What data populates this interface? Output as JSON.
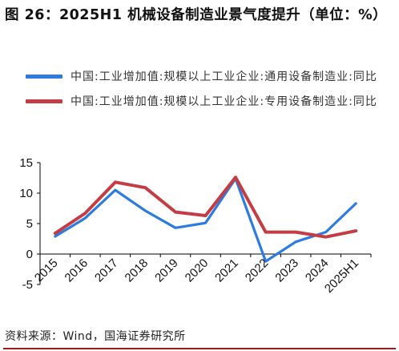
{
  "title": "图 26：2025H1 机械设备制造业景气度提升（单位：%）",
  "source": "资料来源：Wind，国海证券研究所",
  "colors": {
    "series_1": "#2c7be0",
    "series_2": "#c43c44",
    "axis": "#000000",
    "rule": "#9b1c1c"
  },
  "chart_data": {
    "type": "line",
    "x": [
      "2015",
      "2016",
      "2017",
      "2018",
      "2019",
      "2020",
      "2021",
      "2022",
      "2023",
      "2024",
      "2025H1"
    ],
    "ylim": [
      -5,
      15
    ],
    "yticks": [
      15,
      10,
      5,
      0,
      -5
    ],
    "grid": false,
    "legend_position": "top",
    "series": [
      {
        "name": "中国:工业增加值:规模以上工业企业:通用设备制造业:同比",
        "color": "#2c7be0",
        "values": [
          2.9,
          5.9,
          10.5,
          7.1,
          4.3,
          5.1,
          12.4,
          -1.2,
          2.0,
          3.6,
          8.3
        ]
      },
      {
        "name": "中国:工业增加值:规模以上工业企业:专用设备制造业:同比",
        "color": "#c43c44",
        "values": [
          3.4,
          6.7,
          11.8,
          10.9,
          6.9,
          6.3,
          12.6,
          3.6,
          3.6,
          2.8,
          3.8
        ]
      }
    ]
  }
}
